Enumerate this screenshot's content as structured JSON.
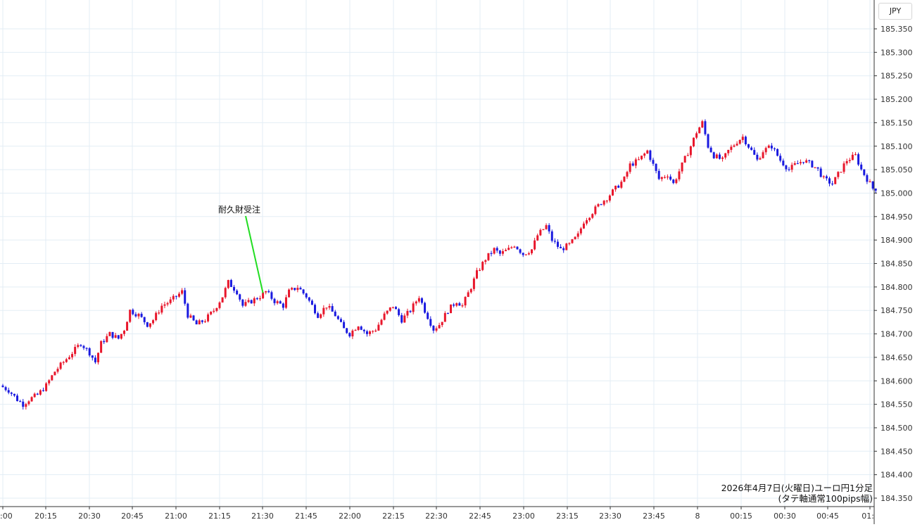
{
  "currency": "JPY",
  "caption": {
    "line1": "2026年4月7日(火曜日)ユーロ円1分足",
    "line2": "(タテ軸通常100pips幅)"
  },
  "annotation": {
    "label": "耐久財受注",
    "time": "21:30",
    "price": 184.775,
    "color": "#22dd22"
  },
  "colors": {
    "up": "#e8162b",
    "down": "#1a1adf",
    "grid": "#e3edf5",
    "axis": "#333333"
  },
  "chart_data": {
    "type": "candlestick",
    "title": "",
    "ylim": [
      184.33,
      185.38
    ],
    "y_ticks": [
      "185.350",
      "185.300",
      "185.250",
      "185.200",
      "185.150",
      "185.100",
      "185.050",
      "185.000",
      "184.950",
      "184.900",
      "184.850",
      "184.800",
      "184.750",
      "184.700",
      "184.650",
      "184.600",
      "184.550",
      "184.500",
      "184.450",
      "184.400",
      "184.350"
    ],
    "x_ticks": [
      ":00",
      "20:15",
      "20:30",
      "20:45",
      "21:00",
      "21:15",
      "21:30",
      "21:45",
      "22:00",
      "22:15",
      "22:30",
      "22:45",
      "23:00",
      "23:15",
      "23:30",
      "23:45",
      "8",
      "00:15",
      "00:30",
      "00:45",
      "01:"
    ],
    "x_range_minutes": [
      "20:00",
      "01:04"
    ],
    "series_close": [
      [
        "20:00",
        184.59
      ],
      [
        "20:03",
        184.58
      ],
      [
        "20:06",
        184.56
      ],
      [
        "20:08",
        184.55
      ],
      [
        "20:10",
        184.56
      ],
      [
        "20:13",
        184.57
      ],
      [
        "20:16",
        184.59
      ],
      [
        "20:19",
        184.62
      ],
      [
        "20:22",
        184.64
      ],
      [
        "20:25",
        184.66
      ],
      [
        "20:28",
        184.68
      ],
      [
        "20:31",
        184.66
      ],
      [
        "20:33",
        184.64
      ],
      [
        "20:35",
        184.68
      ],
      [
        "20:38",
        184.7
      ],
      [
        "20:41",
        184.69
      ],
      [
        "20:43",
        184.71
      ],
      [
        "20:45",
        184.75
      ],
      [
        "20:48",
        184.74
      ],
      [
        "20:51",
        184.72
      ],
      [
        "20:53",
        184.73
      ],
      [
        "20:56",
        184.76
      ],
      [
        "20:59",
        184.77
      ],
      [
        "21:01",
        184.78
      ],
      [
        "21:03",
        184.79
      ],
      [
        "21:05",
        184.74
      ],
      [
        "21:08",
        184.72
      ],
      [
        "21:11",
        184.73
      ],
      [
        "21:14",
        184.75
      ],
      [
        "21:17",
        184.78
      ],
      [
        "21:19",
        184.81
      ],
      [
        "21:22",
        184.79
      ],
      [
        "21:24",
        184.76
      ],
      [
        "21:27",
        184.77
      ],
      [
        "21:30",
        184.78
      ],
      [
        "21:32",
        184.79
      ],
      [
        "21:35",
        184.77
      ],
      [
        "21:38",
        184.76
      ],
      [
        "21:40",
        184.79
      ],
      [
        "21:43",
        184.8
      ],
      [
        "21:46",
        184.78
      ],
      [
        "21:48",
        184.76
      ],
      [
        "21:50",
        184.74
      ],
      [
        "21:53",
        184.76
      ],
      [
        "21:56",
        184.74
      ],
      [
        "21:59",
        184.71
      ],
      [
        "22:01",
        184.7
      ],
      [
        "22:04",
        184.72
      ],
      [
        "22:07",
        184.7
      ],
      [
        "22:10",
        184.71
      ],
      [
        "22:13",
        184.74
      ],
      [
        "22:16",
        184.76
      ],
      [
        "22:19",
        184.73
      ],
      [
        "22:22",
        184.75
      ],
      [
        "22:25",
        184.78
      ],
      [
        "22:27",
        184.75
      ],
      [
        "22:30",
        184.71
      ],
      [
        "22:32",
        184.72
      ],
      [
        "22:35",
        184.75
      ],
      [
        "22:38",
        184.77
      ],
      [
        "22:40",
        184.76
      ],
      [
        "22:43",
        184.8
      ],
      [
        "22:45",
        184.83
      ],
      [
        "22:48",
        184.86
      ],
      [
        "22:51",
        184.88
      ],
      [
        "22:53",
        184.87
      ],
      [
        "22:56",
        184.88
      ],
      [
        "22:58",
        184.89
      ],
      [
        "23:01",
        184.87
      ],
      [
        "23:04",
        184.88
      ],
      [
        "23:06",
        184.91
      ],
      [
        "23:09",
        184.93
      ],
      [
        "23:11",
        184.9
      ],
      [
        "23:14",
        184.88
      ],
      [
        "23:17",
        184.89
      ],
      [
        "23:20",
        184.91
      ],
      [
        "23:22",
        184.94
      ],
      [
        "23:25",
        184.96
      ],
      [
        "23:28",
        184.98
      ],
      [
        "23:30",
        184.99
      ],
      [
        "23:33",
        185.01
      ],
      [
        "23:36",
        185.03
      ],
      [
        "23:38",
        185.06
      ],
      [
        "23:41",
        185.07
      ],
      [
        "23:44",
        185.09
      ],
      [
        "23:46",
        185.06
      ],
      [
        "23:48",
        185.03
      ],
      [
        "23:51",
        185.04
      ],
      [
        "23:53",
        185.02
      ],
      [
        "23:56",
        185.06
      ],
      [
        "23:59",
        185.1
      ],
      [
        "00:01",
        185.13
      ],
      [
        "00:03",
        185.15
      ],
      [
        "00:05",
        185.1
      ],
      [
        "00:07",
        185.08
      ],
      [
        "00:10",
        185.07
      ],
      [
        "00:12",
        185.09
      ],
      [
        "00:15",
        185.11
      ],
      [
        "00:17",
        185.12
      ],
      [
        "00:19",
        185.1
      ],
      [
        "00:22",
        185.07
      ],
      [
        "00:24",
        185.09
      ],
      [
        "00:27",
        185.1
      ],
      [
        "00:30",
        185.07
      ],
      [
        "00:33",
        185.05
      ],
      [
        "00:35",
        185.06
      ],
      [
        "00:38",
        185.07
      ],
      [
        "00:41",
        185.06
      ],
      [
        "00:43",
        185.05
      ],
      [
        "00:45",
        185.03
      ],
      [
        "00:48",
        185.02
      ],
      [
        "00:51",
        185.05
      ],
      [
        "00:53",
        185.07
      ],
      [
        "00:56",
        185.08
      ],
      [
        "00:58",
        185.05
      ],
      [
        "01:00",
        185.03
      ],
      [
        "01:02",
        185.01
      ]
    ]
  }
}
